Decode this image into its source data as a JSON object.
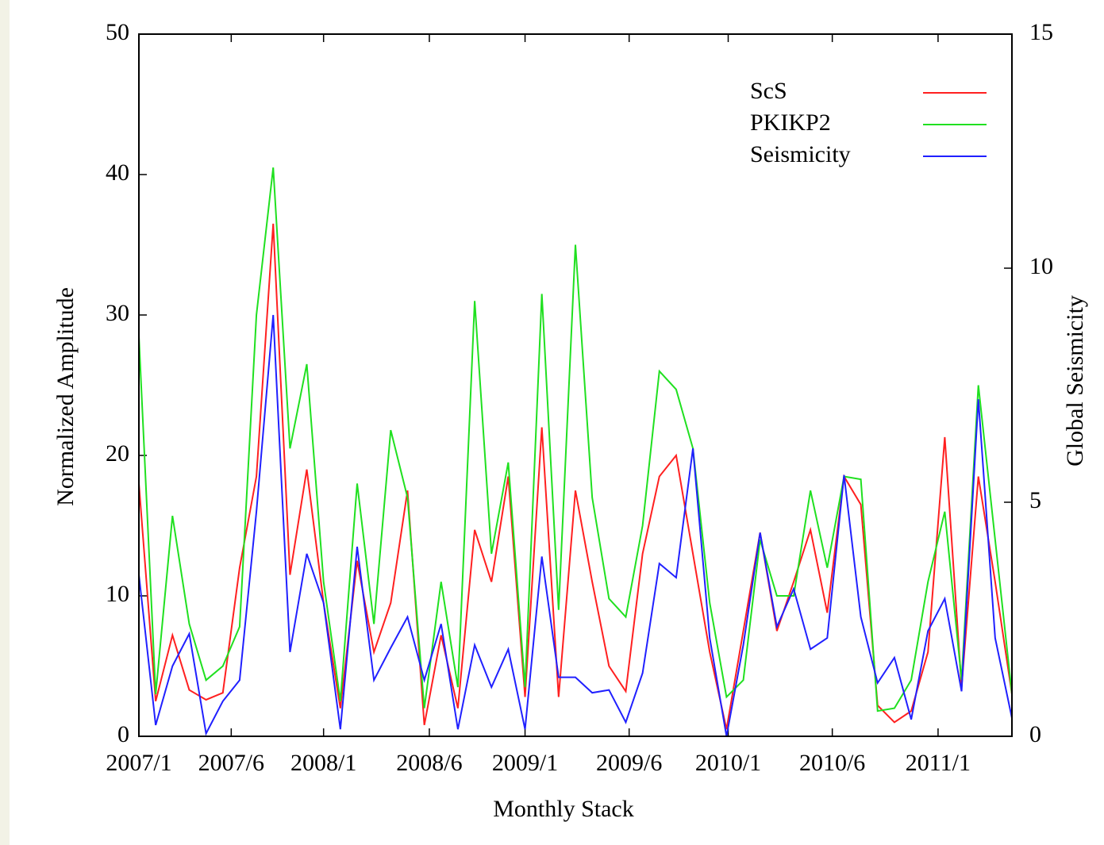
{
  "chart_data": {
    "type": "line",
    "x_label": "Monthly Stack",
    "y_label": "Normalized Amplitude",
    "y2_label": "Global Seismicity",
    "x": [
      0,
      1,
      2,
      3,
      4,
      5,
      6,
      7,
      8,
      9,
      10,
      11,
      12,
      13,
      14,
      15,
      16,
      17,
      18,
      19,
      20,
      21,
      22,
      23,
      24,
      25,
      26,
      27,
      28,
      29,
      30,
      31,
      32,
      33,
      34,
      35,
      36,
      37,
      38,
      39,
      40,
      41,
      42,
      43,
      44,
      45,
      46,
      47,
      48,
      49,
      50,
      51,
      52
    ],
    "xlim": [
      0,
      52
    ],
    "xticks": [
      {
        "value": 0,
        "label": "2007/1"
      },
      {
        "value": 5.5,
        "label": "2007/6"
      },
      {
        "value": 11,
        "label": "2008/1"
      },
      {
        "value": 17.3,
        "label": "2008/6"
      },
      {
        "value": 23,
        "label": "2009/1"
      },
      {
        "value": 29.2,
        "label": "2009/6"
      },
      {
        "value": 35.1,
        "label": "2010/1"
      },
      {
        "value": 41.3,
        "label": "2010/6"
      },
      {
        "value": 47.6,
        "label": "2011/1"
      }
    ],
    "ylim": [
      0,
      50
    ],
    "yticks": [
      0,
      10,
      20,
      30,
      40,
      50
    ],
    "y2lim": [
      0,
      15
    ],
    "y2ticks": [
      0,
      5,
      10,
      15
    ],
    "legend": "upper right",
    "series": [
      {
        "name": "ScS",
        "color": "#ff2020",
        "values": [
          18,
          2.5,
          7.2,
          3.3,
          2.6,
          3.1,
          12,
          18.5,
          36.5,
          11.5,
          19,
          9.5,
          2,
          12.5,
          6,
          9.5,
          17.5,
          0.8,
          7.2,
          2,
          14.7,
          11,
          18.5,
          2.8,
          22,
          2.8,
          17.5,
          11,
          5,
          3.2,
          13,
          18.5,
          20,
          13,
          6,
          0.5,
          7.5,
          14.5,
          7.5,
          11,
          14.7,
          8.8,
          18.5,
          16.5,
          2.2,
          1,
          1.8,
          6,
          21.3,
          3.5,
          18.5,
          11,
          3
        ]
      },
      {
        "name": "PKIKP2",
        "color": "#20e020",
        "values": [
          28.5,
          3,
          15.7,
          8,
          4,
          5,
          7.8,
          30,
          40.5,
          20.5,
          26.5,
          11,
          2.5,
          18,
          8,
          21.8,
          17,
          2,
          11,
          3.5,
          31,
          13,
          19.5,
          3.5,
          31.5,
          9,
          35,
          17,
          9.8,
          8.5,
          15,
          26,
          24.7,
          20.5,
          9.5,
          2.8,
          4,
          14,
          10,
          10,
          17.5,
          12,
          18.5,
          18.3,
          1.8,
          2,
          4,
          11,
          16,
          4,
          25,
          14,
          3
        ]
      },
      {
        "name": "Seismicity",
        "color": "#2020ff",
        "axis": "y2",
        "values": [
          3.45,
          0.24,
          1.5,
          2.19,
          0.06,
          0.75,
          1.2,
          4.8,
          9,
          1.8,
          3.9,
          2.85,
          0.15,
          4.05,
          1.2,
          1.89,
          2.55,
          1.2,
          2.4,
          0.15,
          1.95,
          1.05,
          1.86,
          0.15,
          3.84,
          1.26,
          1.26,
          0.93,
          0.99,
          0.3,
          1.35,
          3.69,
          3.39,
          6.15,
          2.1,
          0,
          1.95,
          4.35,
          2.34,
          3.15,
          1.86,
          2.1,
          5.58,
          2.55,
          1.14,
          1.68,
          0.36,
          2.25,
          2.94,
          0.96,
          7.2,
          2.1,
          0.39
        ]
      }
    ]
  }
}
